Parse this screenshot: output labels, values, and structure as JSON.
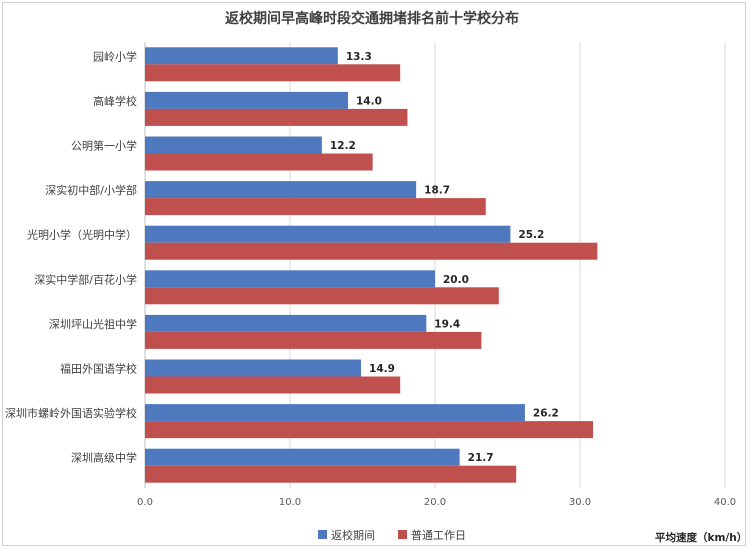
{
  "chart_data": {
    "type": "bar",
    "orientation": "horizontal",
    "title": "返校期间早高峰时段交通拥堵排名前十学校分布",
    "categories": [
      "园岭小学",
      "高峰学校",
      "公明第一小学",
      "深实初中部/小学部",
      "光明小学（光明中学）",
      "深实中学部/百花小学",
      "深圳坪山光祖中学",
      "福田外国语学校",
      "深圳市螺岭外国语实验学校",
      "深圳高级中学"
    ],
    "series": [
      {
        "name": "返校期间",
        "color": "#4e79bf",
        "values": [
          13.3,
          14.0,
          12.2,
          18.7,
          25.2,
          20.0,
          19.4,
          14.9,
          26.2,
          21.7
        ],
        "show_labels": true
      },
      {
        "name": "普通工作日",
        "color": "#c0504d",
        "values": [
          17.6,
          18.1,
          15.7,
          23.5,
          31.2,
          24.4,
          23.2,
          17.6,
          30.9,
          25.6
        ],
        "show_labels": false
      }
    ],
    "xlim": [
      0,
      40
    ],
    "xticks": [
      "0.0",
      "10.0",
      "20.0",
      "30.0",
      "40.0"
    ],
    "xlabel": "平均速度（km/h）",
    "grid": true,
    "legend_position": "bottom"
  }
}
